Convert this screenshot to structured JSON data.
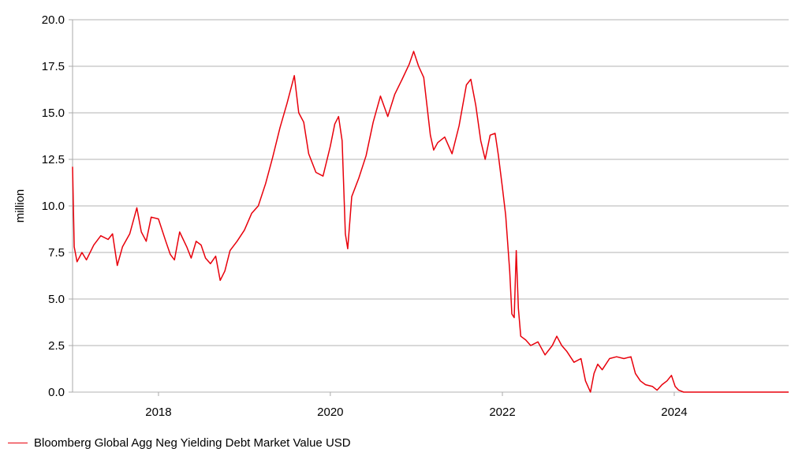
{
  "chart_data": {
    "type": "line",
    "title": "",
    "xlabel": "",
    "ylabel": "million",
    "ylim": [
      0,
      20
    ],
    "y_ticks": [
      "0.0",
      "2.5",
      "5.0",
      "7.5",
      "10.0",
      "12.5",
      "15.0",
      "17.5",
      "20.0"
    ],
    "x_ticks": [
      "2018",
      "2020",
      "2022",
      "2024"
    ],
    "x_range": [
      "2017-01-01",
      "2025-05-01"
    ],
    "grid": "horizontal",
    "legend_position": "bottom-left",
    "series": [
      {
        "name": "Bloomberg Global Agg Neg Yielding Debt Market Value USD",
        "color": "#e8000b",
        "points": [
          [
            "2017-01-01",
            12.1
          ],
          [
            "2017-01-08",
            7.8
          ],
          [
            "2017-01-20",
            7.0
          ],
          [
            "2017-02-10",
            7.5
          ],
          [
            "2017-03-01",
            7.1
          ],
          [
            "2017-04-01",
            7.9
          ],
          [
            "2017-05-01",
            8.4
          ],
          [
            "2017-06-01",
            8.2
          ],
          [
            "2017-06-20",
            8.5
          ],
          [
            "2017-07-10",
            6.8
          ],
          [
            "2017-08-01",
            7.8
          ],
          [
            "2017-09-01",
            8.5
          ],
          [
            "2017-10-01",
            9.9
          ],
          [
            "2017-10-20",
            8.6
          ],
          [
            "2017-11-10",
            8.1
          ],
          [
            "2017-12-01",
            9.4
          ],
          [
            "2018-01-01",
            9.3
          ],
          [
            "2018-02-01",
            8.1
          ],
          [
            "2018-02-20",
            7.4
          ],
          [
            "2018-03-10",
            7.1
          ],
          [
            "2018-04-01",
            8.6
          ],
          [
            "2018-05-01",
            7.8
          ],
          [
            "2018-05-20",
            7.2
          ],
          [
            "2018-06-10",
            8.1
          ],
          [
            "2018-07-01",
            7.9
          ],
          [
            "2018-07-20",
            7.2
          ],
          [
            "2018-08-10",
            6.9
          ],
          [
            "2018-09-01",
            7.3
          ],
          [
            "2018-09-20",
            6.0
          ],
          [
            "2018-10-10",
            6.5
          ],
          [
            "2018-11-01",
            7.6
          ],
          [
            "2018-12-01",
            8.1
          ],
          [
            "2019-01-01",
            8.7
          ],
          [
            "2019-02-01",
            9.6
          ],
          [
            "2019-03-01",
            10.0
          ],
          [
            "2019-04-01",
            11.2
          ],
          [
            "2019-05-01",
            12.6
          ],
          [
            "2019-06-01",
            14.2
          ],
          [
            "2019-07-01",
            15.5
          ],
          [
            "2019-08-01",
            17.0
          ],
          [
            "2019-08-20",
            15.0
          ],
          [
            "2019-09-10",
            14.5
          ],
          [
            "2019-10-01",
            12.8
          ],
          [
            "2019-11-01",
            11.8
          ],
          [
            "2019-12-01",
            11.6
          ],
          [
            "2020-01-01",
            13.2
          ],
          [
            "2020-01-20",
            14.4
          ],
          [
            "2020-02-05",
            14.8
          ],
          [
            "2020-02-20",
            13.5
          ],
          [
            "2020-03-05",
            8.5
          ],
          [
            "2020-03-15",
            7.7
          ],
          [
            "2020-04-01",
            10.5
          ],
          [
            "2020-05-01",
            11.5
          ],
          [
            "2020-06-01",
            12.7
          ],
          [
            "2020-07-01",
            14.5
          ],
          [
            "2020-08-01",
            15.9
          ],
          [
            "2020-09-01",
            14.8
          ],
          [
            "2020-10-01",
            16.0
          ],
          [
            "2020-11-01",
            16.8
          ],
          [
            "2020-12-01",
            17.6
          ],
          [
            "2020-12-20",
            18.3
          ],
          [
            "2021-01-10",
            17.5
          ],
          [
            "2021-02-01",
            16.9
          ],
          [
            "2021-03-01",
            13.8
          ],
          [
            "2021-03-15",
            13.0
          ],
          [
            "2021-04-01",
            13.4
          ],
          [
            "2021-05-01",
            13.7
          ],
          [
            "2021-06-01",
            12.8
          ],
          [
            "2021-07-01",
            14.3
          ],
          [
            "2021-08-01",
            16.5
          ],
          [
            "2021-08-20",
            16.8
          ],
          [
            "2021-09-10",
            15.4
          ],
          [
            "2021-10-01",
            13.5
          ],
          [
            "2021-10-20",
            12.5
          ],
          [
            "2021-11-10",
            13.8
          ],
          [
            "2021-12-01",
            13.9
          ],
          [
            "2021-12-15",
            12.7
          ],
          [
            "2022-01-01",
            11.0
          ],
          [
            "2022-01-15",
            9.5
          ],
          [
            "2022-02-01",
            6.5
          ],
          [
            "2022-02-10",
            4.2
          ],
          [
            "2022-02-20",
            4.0
          ],
          [
            "2022-03-01",
            7.6
          ],
          [
            "2022-03-10",
            4.5
          ],
          [
            "2022-03-20",
            3.0
          ],
          [
            "2022-04-10",
            2.8
          ],
          [
            "2022-05-01",
            2.5
          ],
          [
            "2022-06-01",
            2.7
          ],
          [
            "2022-07-01",
            2.0
          ],
          [
            "2022-08-01",
            2.5
          ],
          [
            "2022-08-20",
            3.0
          ],
          [
            "2022-09-10",
            2.5
          ],
          [
            "2022-10-01",
            2.2
          ],
          [
            "2022-11-01",
            1.6
          ],
          [
            "2022-12-01",
            1.8
          ],
          [
            "2022-12-20",
            0.6
          ],
          [
            "2023-01-10",
            0.0
          ],
          [
            "2023-01-25",
            1.0
          ],
          [
            "2023-02-10",
            1.5
          ],
          [
            "2023-03-01",
            1.2
          ],
          [
            "2023-04-01",
            1.8
          ],
          [
            "2023-05-01",
            1.9
          ],
          [
            "2023-06-01",
            1.8
          ],
          [
            "2023-07-01",
            1.9
          ],
          [
            "2023-07-20",
            1.0
          ],
          [
            "2023-08-10",
            0.6
          ],
          [
            "2023-09-01",
            0.4
          ],
          [
            "2023-10-01",
            0.3
          ],
          [
            "2023-10-20",
            0.1
          ],
          [
            "2023-11-10",
            0.4
          ],
          [
            "2023-12-01",
            0.6
          ],
          [
            "2023-12-20",
            0.9
          ],
          [
            "2024-01-05",
            0.3
          ],
          [
            "2024-01-20",
            0.1
          ],
          [
            "2024-02-10",
            0.0
          ],
          [
            "2025-05-01",
            0.0
          ]
        ]
      }
    ]
  }
}
